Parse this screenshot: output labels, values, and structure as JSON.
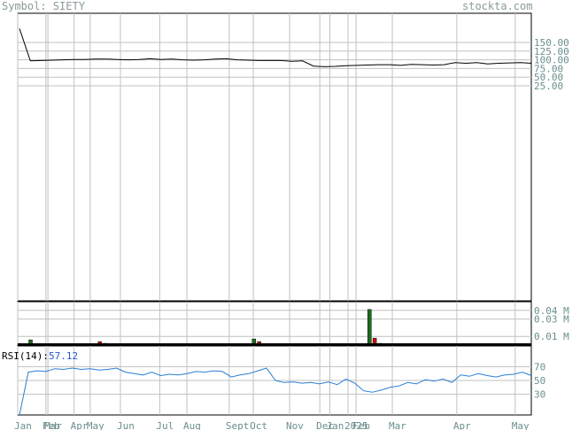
{
  "header": {
    "symbol": "Symbol: SIETY",
    "site": "stockta.com"
  },
  "chart_data": {
    "type": "line",
    "price": {
      "ticks": [
        "150.00",
        "125.00",
        "100.00",
        "75.00",
        "50.00",
        "25.00"
      ],
      "tick_values": [
        150,
        125,
        100,
        75,
        50,
        25
      ],
      "ylim": [
        0,
        180
      ],
      "values": [
        190,
        97,
        98,
        99,
        100,
        101,
        101,
        102,
        102,
        101,
        100,
        101,
        103,
        101,
        102,
        100,
        99,
        100,
        102,
        103,
        100,
        99,
        98,
        98,
        98,
        96,
        97,
        82,
        80,
        81,
        83,
        84,
        85,
        86,
        86,
        84,
        87,
        86,
        85,
        86,
        92,
        90,
        92,
        88,
        90,
        91,
        92,
        90
      ]
    },
    "volume": {
      "ticks": [
        "0.04 M",
        "0.03 M",
        "0.01 M"
      ],
      "tick_values": [
        0.04,
        0.03,
        0.01
      ],
      "ylim": [
        0,
        0.05
      ],
      "bars": [
        {
          "x": 0.025,
          "v": 0.006,
          "c": "up"
        },
        {
          "x": 0.16,
          "v": 0.004,
          "c": "down"
        },
        {
          "x": 0.17,
          "v": 0.002,
          "c": "down"
        },
        {
          "x": 0.395,
          "v": 0.001,
          "c": "up"
        },
        {
          "x": 0.46,
          "v": 0.007,
          "c": "up"
        },
        {
          "x": 0.47,
          "v": 0.004,
          "c": "down"
        },
        {
          "x": 0.685,
          "v": 0.041,
          "c": "up"
        },
        {
          "x": 0.695,
          "v": 0.008,
          "c": "down"
        },
        {
          "x": 0.705,
          "v": 0.002,
          "c": "down"
        },
        {
          "x": 0.72,
          "v": 0.001,
          "c": "up"
        },
        {
          "x": 0.94,
          "v": 0.001,
          "c": "up"
        }
      ]
    },
    "rsi": {
      "label": "RSI(14):",
      "value": "57.12",
      "ticks": [
        "70",
        "50",
        "30"
      ],
      "tick_values": [
        70,
        50,
        30
      ],
      "ylim": [
        0,
        100
      ],
      "values": [
        0,
        62,
        64,
        63,
        67,
        66,
        68,
        66,
        67,
        65,
        66,
        68,
        62,
        60,
        58,
        62,
        57,
        59,
        58,
        60,
        63,
        62,
        64,
        63,
        55,
        58,
        60,
        64,
        68,
        50,
        47,
        48,
        46,
        47,
        45,
        48,
        44,
        52,
        46,
        35,
        33,
        36,
        40,
        42,
        47,
        45,
        51,
        49,
        52,
        47,
        58,
        56,
        60,
        57,
        55,
        58,
        59,
        62,
        57
      ]
    },
    "x_labels": [
      "Jan",
      "Feb",
      "Mar",
      "Apr",
      "May",
      "Jun",
      "Jul",
      "Aug",
      "Sept",
      "Oct",
      "Nov",
      "Dec",
      "Jan",
      "2025",
      "Feb",
      "Mar",
      "Apr",
      "May"
    ],
    "x_positions": [
      0.0,
      0.0549,
      0.0588,
      0.1098,
      0.1412,
      0.2,
      0.2765,
      0.3294,
      0.4118,
      0.4588,
      0.5294,
      0.5882,
      0.6078,
      0.6431,
      0.6588,
      0.7294,
      0.8549,
      0.9686
    ]
  },
  "colors": {
    "up": "#1a6e1a",
    "down": "#cc1111",
    "rsi": "#2a7fd4",
    "grid": "#c0c0c0"
  }
}
